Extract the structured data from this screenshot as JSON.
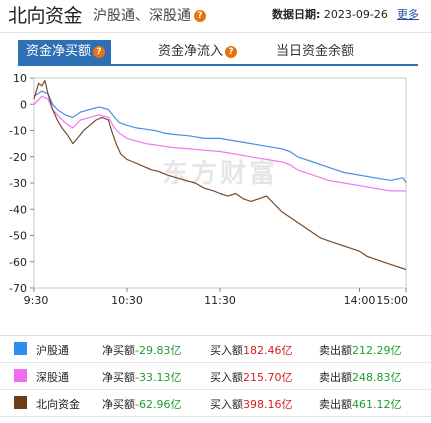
{
  "header": {
    "title": "北向资金",
    "subtitle": "沪股通、深股通",
    "help_icon": "question-icon",
    "date_label": "数据日期:",
    "date_value": "2023-09-26",
    "more_link": "更多"
  },
  "tabs": [
    {
      "label": "资金净买额",
      "active": true,
      "icon": "question-icon"
    },
    {
      "label": "资金净流入",
      "active": false,
      "icon": "question-icon"
    },
    {
      "label": "当日资金余额",
      "active": false
    }
  ],
  "chart_data": {
    "type": "line",
    "watermark": "东方财富",
    "ylim": [
      -70,
      10
    ],
    "yticks": [
      10,
      0,
      -10,
      -20,
      -30,
      -40,
      -50,
      -60,
      -70
    ],
    "xticks": [
      "9:30",
      "10:30",
      "11:30",
      "14:00",
      "15:00"
    ],
    "grid": false,
    "series": [
      {
        "name": "沪股通",
        "color": "#4b8fe4",
        "x": [
          0,
          5,
          9,
          12,
          15,
          20,
          25,
          30,
          36,
          42,
          48,
          52,
          55,
          60,
          66,
          72,
          78,
          84,
          90,
          100,
          110,
          120,
          130,
          140,
          150,
          160,
          165,
          170,
          180,
          190,
          200,
          210,
          220,
          230,
          238,
          240
        ],
        "y": [
          3,
          5,
          4,
          0,
          -2,
          -4,
          -5,
          -3,
          -2,
          -1,
          -2,
          -5,
          -7,
          -8,
          -9,
          -9.5,
          -10,
          -11,
          -11.5,
          -12,
          -13,
          -13,
          -14,
          -15,
          -16,
          -17,
          -18,
          -20,
          -22,
          -24,
          -26,
          -27,
          -28,
          -29,
          -28,
          -29.83
        ]
      },
      {
        "name": "深股通",
        "color": "#f078f0",
        "x": [
          0,
          5,
          9,
          12,
          15,
          20,
          25,
          30,
          36,
          42,
          48,
          52,
          55,
          60,
          66,
          72,
          78,
          84,
          90,
          100,
          110,
          120,
          130,
          140,
          150,
          160,
          165,
          170,
          180,
          190,
          200,
          210,
          220,
          230,
          238,
          240
        ],
        "y": [
          0,
          3,
          2,
          -2,
          -4,
          -7,
          -9,
          -6,
          -5,
          -4,
          -5,
          -9,
          -11,
          -13,
          -14,
          -15,
          -15.5,
          -16,
          -16.5,
          -17,
          -17.5,
          -18,
          -19,
          -20,
          -21,
          -22,
          -23,
          -25,
          -27,
          -29,
          -30,
          -31,
          -32,
          -33,
          -33,
          -33.13
        ]
      },
      {
        "name": "北向资金",
        "color": "#7a4a2a",
        "x": [
          0,
          3,
          5,
          7,
          9,
          12,
          15,
          18,
          22,
          25,
          28,
          32,
          36,
          40,
          44,
          48,
          50,
          53,
          56,
          60,
          64,
          68,
          72,
          76,
          80,
          86,
          92,
          98,
          104,
          110,
          116,
          120,
          125,
          130,
          135,
          140,
          145,
          150,
          155,
          160,
          165,
          170,
          175,
          180,
          185,
          190,
          195,
          200,
          205,
          210,
          215,
          220,
          225,
          230,
          235,
          240
        ],
        "y": [
          2,
          8,
          7,
          9,
          4,
          -2,
          -6,
          -9,
          -12,
          -15,
          -13,
          -10,
          -8,
          -6,
          -5,
          -6,
          -10,
          -15,
          -19,
          -21,
          -22,
          -23,
          -24,
          -25,
          -25.5,
          -27,
          -28,
          -29,
          -30,
          -32,
          -33,
          -34,
          -35,
          -34,
          -36,
          -37,
          -36,
          -35,
          -38,
          -41,
          -43,
          -45,
          -47,
          -49,
          -51,
          -52,
          -53,
          -54,
          -55,
          -56,
          -58,
          -59,
          -60,
          -61,
          -62,
          -62.96
        ]
      }
    ]
  },
  "legend": [
    {
      "name": "沪股通",
      "color": "#2d8ef0",
      "net_label": "净买额",
      "net_value": "-29.83亿",
      "buy_label": "买入额",
      "buy_value": "182.46亿",
      "sell_label": "卖出额",
      "sell_value": "212.29亿"
    },
    {
      "name": "深股通",
      "color": "#f06cf0",
      "net_label": "净买额",
      "net_value": "-33.13亿",
      "buy_label": "买入额",
      "buy_value": "215.70亿",
      "sell_label": "卖出额",
      "sell_value": "248.83亿"
    },
    {
      "name": "北向资金",
      "color": "#6b3d16",
      "net_label": "净买额",
      "net_value": "-62.96亿",
      "buy_label": "买入额",
      "buy_value": "398.16亿",
      "sell_label": "卖出额",
      "sell_value": "461.12亿"
    }
  ]
}
